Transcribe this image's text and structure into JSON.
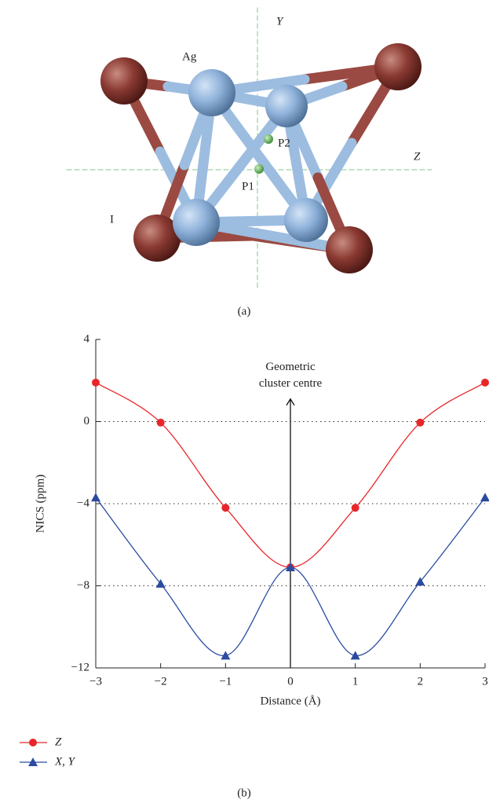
{
  "diagram": {
    "caption": "(a)",
    "labels": {
      "y_axis": "Y",
      "z_axis": "Z",
      "silver": "Ag",
      "iodine": "I",
      "p1": "P1",
      "p2": "P2"
    }
  },
  "chart_data": {
    "type": "line",
    "caption": "(b)",
    "x_label": "Distance (Å)",
    "y_label": "NICS (ppm)",
    "x": [
      -3,
      -2,
      -1,
      0,
      1,
      2,
      3
    ],
    "series": [
      {
        "name": "Z",
        "color": "#e8262a",
        "marker": "circle",
        "values": [
          1.9,
          -0.05,
          -4.2,
          -7.1,
          -4.2,
          -0.05,
          1.9
        ]
      },
      {
        "name": "X, Y",
        "color": "#2b4ba0",
        "marker": "triangle",
        "values": [
          -3.7,
          -7.9,
          -11.4,
          -7.1,
          -11.4,
          -7.8,
          -3.7
        ]
      }
    ],
    "xlim": [
      -3,
      3
    ],
    "xticks": [
      {
        "value": -3,
        "label": "−3"
      },
      {
        "value": -2,
        "label": "−2"
      },
      {
        "value": -1,
        "label": "−1"
      },
      0,
      1,
      2,
      3
    ],
    "ylim": [
      -12,
      4
    ],
    "yticks": [
      {
        "value": -12,
        "label": "−12"
      },
      {
        "value": -8,
        "label": "−8"
      },
      {
        "value": -4,
        "label": "−4"
      },
      0,
      4
    ],
    "grid": true,
    "annotation": {
      "lines": [
        "Geometric",
        "cluster centre"
      ],
      "x": 0,
      "y": 1.1
    },
    "legend": "bottom-left"
  }
}
